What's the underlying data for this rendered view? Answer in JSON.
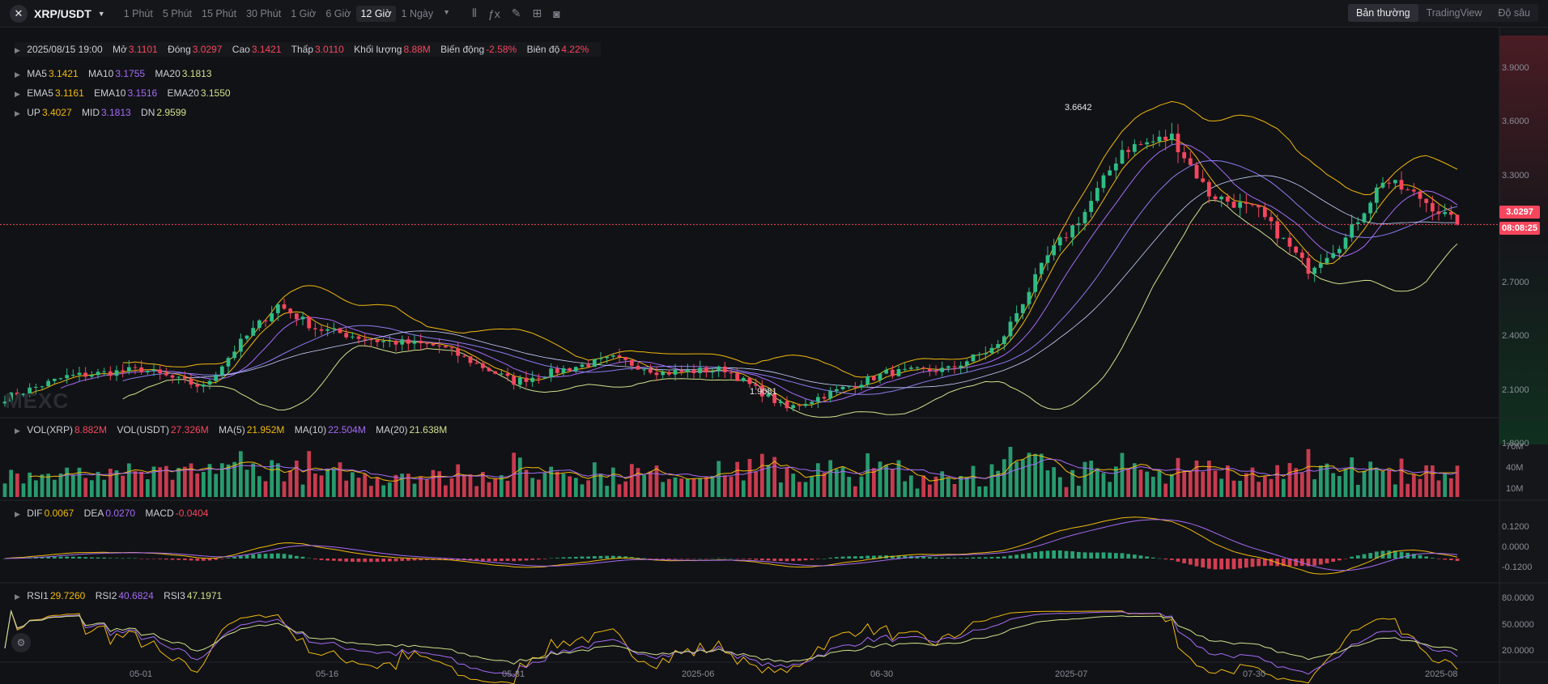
{
  "header": {
    "pair": "XRP/USDT",
    "timeframes": [
      "1 Phút",
      "5 Phút",
      "15 Phút",
      "30 Phút",
      "1 Giờ",
      "6 Giờ",
      "12 Giờ",
      "1 Ngày"
    ],
    "active_timeframe": "12 Giờ",
    "modes": [
      "Bản thường",
      "TradingView",
      "Độ sâu"
    ],
    "active_mode": "Bản thường",
    "icons": [
      "candle-settings-icon",
      "indicator-fx-icon",
      "pencil-icon",
      "layout-grid-icon",
      "camera-icon"
    ]
  },
  "ohlc": {
    "date": "2025/08/15 19:00",
    "open_label": "Mở",
    "open": "3.1101",
    "close_label": "Đóng",
    "close": "3.0297",
    "high_label": "Cao",
    "high": "3.1421",
    "low_label": "Thấp",
    "low": "3.0110",
    "volume_label": "Khối lượng",
    "volume": "8.88M",
    "change_label": "Biến động",
    "change": "-2.58%",
    "amplitude_label": "Biên độ",
    "amplitude": "4.22%"
  },
  "ma": {
    "ma5_label": "MA5",
    "ma5": "3.1421",
    "ma10_label": "MA10",
    "ma10": "3.1755",
    "ma20_label": "MA20",
    "ma20": "3.1813"
  },
  "ema": {
    "ema5_label": "EMA5",
    "ema5": "3.1161",
    "ema10_label": "EMA10",
    "ema10": "3.1516",
    "ema20_label": "EMA20",
    "ema20": "3.1550"
  },
  "boll": {
    "up_label": "UP",
    "up": "3.4027",
    "mid_label": "MID",
    "mid": "3.1813",
    "dn_label": "DN",
    "dn": "2.9599"
  },
  "vol": {
    "xrp_label": "VOL(XRP)",
    "xrp": "8.882M",
    "usdt_label": "VOL(USDT)",
    "usdt": "27.326M",
    "ma5_label": "MA(5)",
    "ma5": "21.952M",
    "ma10_label": "MA(10)",
    "ma10": "22.504M",
    "ma20_label": "MA(20)",
    "ma20": "21.638M"
  },
  "macd": {
    "dif_label": "DIF",
    "dif": "0.0067",
    "dea_label": "DEA",
    "dea": "0.0270",
    "macd_label": "MACD",
    "macd": "-0.0404"
  },
  "rsi": {
    "rsi1_label": "RSI1",
    "rsi1": "29.7260",
    "rsi2_label": "RSI2",
    "rsi2": "40.6824",
    "rsi3_label": "RSI3",
    "rsi3": "47.1971"
  },
  "price_axis": [
    "3.9000",
    "3.6000",
    "3.3000",
    "2.7000",
    "2.4000",
    "2.1000",
    "1.8000"
  ],
  "volume_axis": [
    "70M",
    "40M",
    "10M"
  ],
  "macd_axis": [
    "0.1200",
    "0.0000",
    "-0.1200"
  ],
  "rsi_axis": [
    "80.0000",
    "50.0000",
    "20.0000"
  ],
  "time_axis": [
    "05-01",
    "05-16",
    "05-31",
    "2025-06",
    "06-30",
    "2025-07",
    "07-30",
    "2025-08"
  ],
  "current_price": "3.0297",
  "countdown": "08:08:25",
  "high_marker": "3.6642",
  "low_marker": "1.9081",
  "watermark": "MEXC",
  "colors": {
    "up": "#2ebd85",
    "down": "#f6465d",
    "ma5": "#f0b90b",
    "ma10": "#a66bf5",
    "ma20": "#d0e08a",
    "background": "#111216"
  },
  "chart_data": {
    "type": "candlestick",
    "interval": "12 Giờ",
    "x_start": "2025-04-20",
    "x_end": "2025-08-15",
    "ylim": [
      1.8,
      3.95
    ],
    "price_keyframes": [
      [
        "2025-04-20",
        2.06
      ],
      [
        "2025-04-25",
        2.18
      ],
      [
        "2025-05-01",
        2.22
      ],
      [
        "2025-05-06",
        2.12
      ],
      [
        "2025-05-09",
        2.37
      ],
      [
        "2025-05-12",
        2.58
      ],
      [
        "2025-05-15",
        2.45
      ],
      [
        "2025-05-20",
        2.38
      ],
      [
        "2025-05-25",
        2.35
      ],
      [
        "2025-05-31",
        2.15
      ],
      [
        "2025-06-04",
        2.22
      ],
      [
        "2025-06-08",
        2.28
      ],
      [
        "2025-06-12",
        2.2
      ],
      [
        "2025-06-17",
        2.22
      ],
      [
        "2025-06-22",
        2.0
      ],
      [
        "2025-06-26",
        2.1
      ],
      [
        "2025-06-30",
        2.2
      ],
      [
        "2025-07-05",
        2.22
      ],
      [
        "2025-07-09",
        2.35
      ],
      [
        "2025-07-13",
        2.85
      ],
      [
        "2025-07-16",
        3.1
      ],
      [
        "2025-07-19",
        3.45
      ],
      [
        "2025-07-23",
        3.52
      ],
      [
        "2025-07-26",
        3.2
      ],
      [
        "2025-07-30",
        3.1
      ],
      [
        "2025-08-03",
        2.78
      ],
      [
        "2025-08-06",
        2.95
      ],
      [
        "2025-08-09",
        3.28
      ],
      [
        "2025-08-12",
        3.18
      ],
      [
        "2025-08-15",
        3.03
      ]
    ]
  }
}
